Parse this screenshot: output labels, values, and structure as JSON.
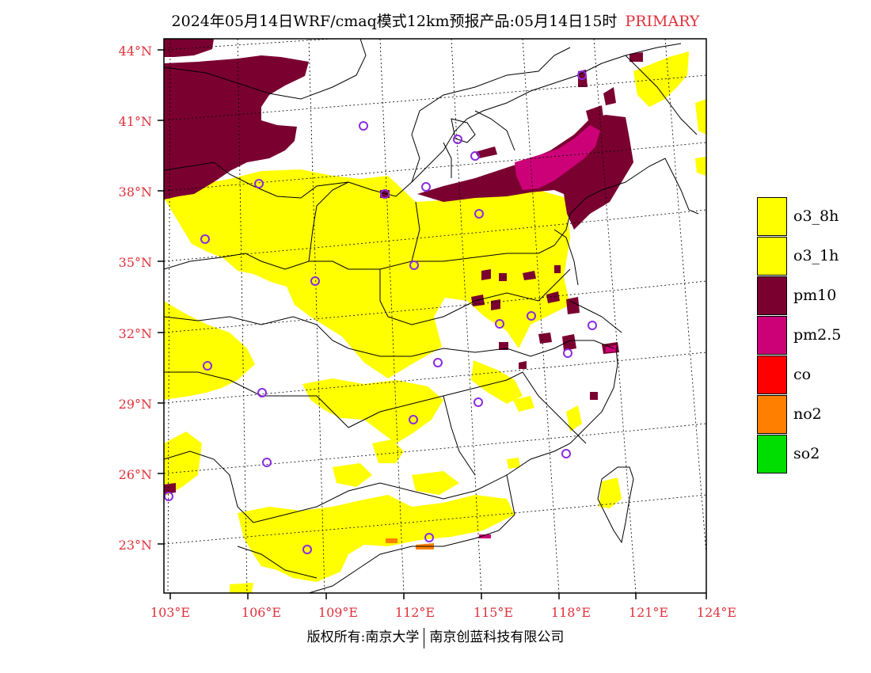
{
  "title": {
    "main": "2024年05月14日WRF/cmaq模式12km预报产品:05月14日15时",
    "tag": "PRIMARY"
  },
  "lat_labels": [
    "44°N",
    "41°N",
    "38°N",
    "35°N",
    "32°N",
    "29°N",
    "26°N",
    "23°N"
  ],
  "lon_labels": [
    "103°E",
    "106°E",
    "109°E",
    "112°E",
    "115°E",
    "118°E",
    "121°E",
    "124°E"
  ],
  "legend": [
    {
      "label": "o3_8h",
      "color": "#ffff00"
    },
    {
      "label": "o3_1h",
      "color": "#ffff00"
    },
    {
      "label": "pm10",
      "color": "#7a0030"
    },
    {
      "label": "pm2.5",
      "color": "#cc0077"
    },
    {
      "label": "co",
      "color": "#ff0000"
    },
    {
      "label": "no2",
      "color": "#ff7f00"
    },
    {
      "label": "so2",
      "color": "#00dd00"
    }
  ],
  "colors": {
    "o3": "#ffff00",
    "pm10": "#7a0030",
    "pm25": "#cc0077",
    "no2": "#ff7f00",
    "station": "#8a2be2",
    "label": "#e0303a"
  },
  "copyright": {
    "left": "版权所有:南京大学",
    "right": "南京创蓝科技有限公司"
  }
}
